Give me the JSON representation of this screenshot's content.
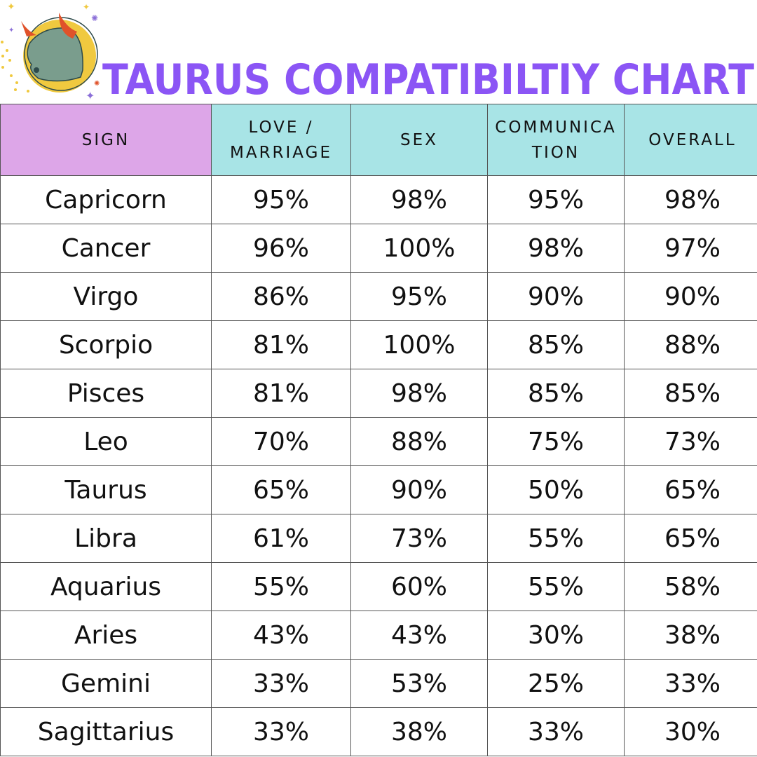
{
  "title": "TAURUS COMPATIBILTIY CHART",
  "colors": {
    "title": "#8b55f5",
    "sign_header": "#dda6e8",
    "metric_header": "#a8e4e6"
  },
  "logo": {
    "icon": "taurus-bull-icon"
  },
  "chart_data": {
    "type": "table",
    "title": "TAURUS COMPATIBILTIY CHART",
    "columns": [
      "SIGN",
      "LOVE / MARRIAGE",
      "SEX",
      "COMMUNICATION",
      "OVERALL"
    ],
    "header_lines": [
      [
        "SIGN"
      ],
      [
        "LOVE /",
        "MARRIAGE"
      ],
      [
        "SEX"
      ],
      [
        "COMMUNICA",
        "TION"
      ],
      [
        "OVERALL"
      ]
    ],
    "rows": [
      [
        "Capricorn",
        "95%",
        "98%",
        "95%",
        "98%"
      ],
      [
        "Cancer",
        "96%",
        "100%",
        "98%",
        "97%"
      ],
      [
        "Virgo",
        "86%",
        "95%",
        "90%",
        "90%"
      ],
      [
        "Scorpio",
        "81%",
        "100%",
        "85%",
        "88%"
      ],
      [
        "Pisces",
        "81%",
        "98%",
        "85%",
        "85%"
      ],
      [
        "Leo",
        "70%",
        "88%",
        "75%",
        "73%"
      ],
      [
        "Taurus",
        "65%",
        "90%",
        "50%",
        "65%"
      ],
      [
        "Libra",
        "61%",
        "73%",
        "55%",
        "65%"
      ],
      [
        "Aquarius",
        "55%",
        "60%",
        "55%",
        "58%"
      ],
      [
        "Aries",
        "43%",
        "43%",
        "30%",
        "38%"
      ],
      [
        "Gemini",
        "33%",
        "53%",
        "25%",
        "33%"
      ],
      [
        "Sagittarius",
        "33%",
        "38%",
        "33%",
        "30%"
      ]
    ]
  }
}
